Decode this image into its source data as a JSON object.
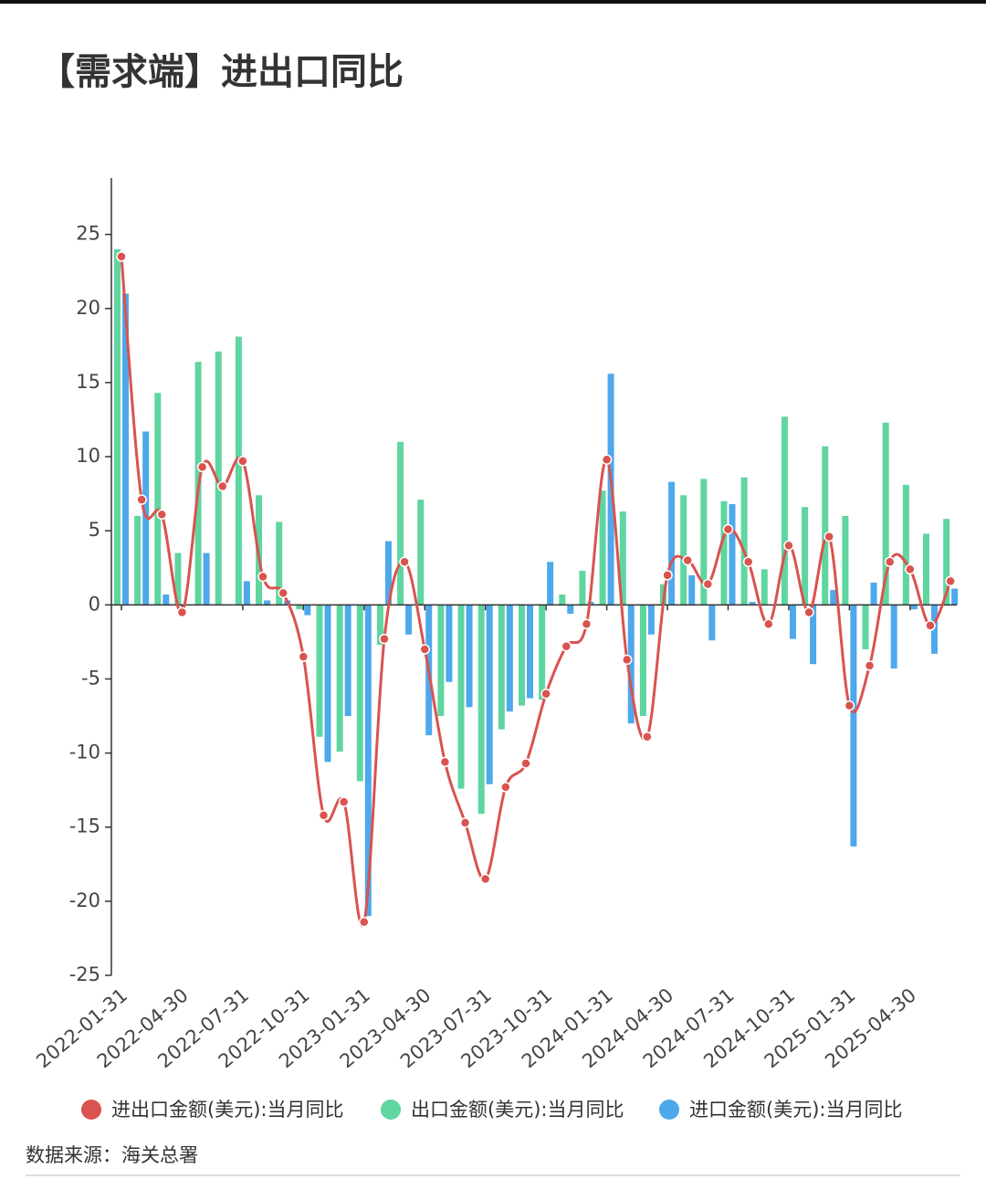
{
  "chart_data": {
    "type": "bar_line",
    "title": "【需求端】进出口同比",
    "source": "数据来源：海关总署",
    "categories": [
      "2022-01-31",
      null,
      null,
      "2022-04-30",
      null,
      null,
      "2022-07-31",
      null,
      null,
      "2022-10-31",
      null,
      null,
      "2023-01-31",
      null,
      null,
      "2023-04-30",
      null,
      null,
      "2023-07-31",
      null,
      null,
      "2023-10-31",
      null,
      null,
      "2024-01-31",
      null,
      null,
      "2024-04-30",
      null,
      null,
      "2024-07-31",
      null,
      null,
      "2024-10-31",
      null,
      null,
      "2025-01-31",
      null,
      null,
      "2025-04-30",
      null,
      null
    ],
    "series": [
      {
        "name": "进出口金额(美元):当月同比",
        "kind": "line",
        "color": "#d9534f",
        "values": [
          23.5,
          7.1,
          6.1,
          -0.5,
          9.3,
          8.0,
          9.7,
          1.9,
          0.8,
          -3.5,
          -14.2,
          -13.3,
          -21.4,
          -2.3,
          2.9,
          -3.0,
          -10.6,
          -14.7,
          -18.5,
          -12.3,
          -10.7,
          -6.0,
          -2.8,
          -1.3,
          9.8,
          -3.7,
          -8.9,
          2.0,
          3.0,
          1.4,
          5.1,
          2.9,
          -1.3,
          4.0,
          -0.5,
          4.6,
          -6.8,
          -4.1,
          2.9,
          2.4,
          -1.4,
          1.6
        ]
      },
      {
        "name": "出口金额(美元):当月同比",
        "kind": "bar",
        "color": "#5fd5a0",
        "values": [
          24.0,
          6.0,
          14.3,
          3.5,
          16.4,
          17.1,
          18.1,
          7.4,
          5.6,
          -0.3,
          -8.9,
          -9.9,
          -11.9,
          -2.7,
          11.0,
          7.1,
          -7.5,
          -12.4,
          -14.1,
          -8.4,
          -6.8,
          -6.4,
          0.7,
          2.3,
          7.7,
          6.3,
          -7.5,
          1.4,
          7.4,
          8.5,
          7.0,
          8.6,
          2.4,
          12.7,
          6.6,
          10.7,
          6.0,
          -3.0,
          12.3,
          8.1,
          4.8,
          5.8
        ]
      },
      {
        "name": "进口金额(美元):当月同比",
        "kind": "bar",
        "color": "#4ea8ec",
        "values": [
          21.0,
          11.7,
          0.7,
          0.0,
          3.5,
          0.0,
          1.6,
          0.3,
          0.3,
          -0.7,
          -10.6,
          -7.5,
          -21.0,
          4.3,
          -2.0,
          -8.8,
          -5.2,
          -6.9,
          -12.1,
          -7.2,
          -6.3,
          2.9,
          -0.6,
          0.2,
          15.6,
          -8.0,
          -2.0,
          8.3,
          2.0,
          -2.4,
          6.8,
          0.2,
          0.0,
          -2.3,
          -4.0,
          1.0,
          -16.3,
          1.5,
          -4.3,
          -0.3,
          -3.3,
          1.1
        ]
      }
    ],
    "ylim": [
      -25,
      28.8
    ],
    "yticks": [
      -25,
      -20,
      -15,
      -10,
      -5,
      0,
      5,
      10,
      15,
      20,
      25
    ],
    "legend": "bottom"
  }
}
